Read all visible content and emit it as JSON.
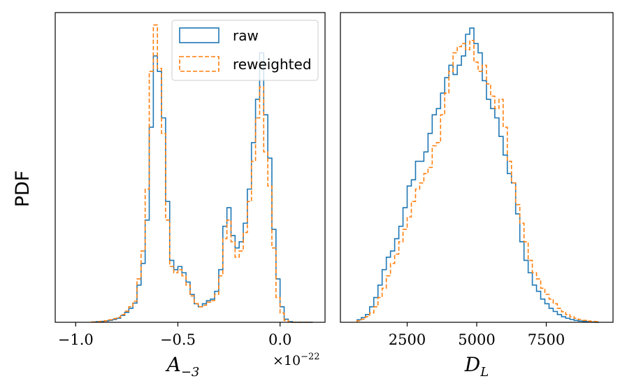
{
  "y_label": "PDF",
  "chart_data": [
    {
      "type": "histogram",
      "panel": "left",
      "xlabel_base": "A",
      "xlabel_sub": "−3",
      "offset_text": "×10",
      "offset_exp": "−22",
      "xlim": [
        -1.1,
        0.22
      ],
      "xticks": [
        -1.0,
        -0.5,
        0.0
      ],
      "xtick_labels": [
        "−1.0",
        "−0.5",
        "0.0"
      ],
      "ylim": [
        0,
        1.0
      ],
      "yticks_shown": false,
      "bin_edges": [
        -0.92,
        -0.9,
        -0.88,
        -0.86,
        -0.84,
        -0.82,
        -0.8,
        -0.78,
        -0.76,
        -0.74,
        -0.72,
        -0.7,
        -0.68,
        -0.66,
        -0.64,
        -0.62,
        -0.6,
        -0.58,
        -0.56,
        -0.54,
        -0.52,
        -0.5,
        -0.48,
        -0.46,
        -0.44,
        -0.42,
        -0.4,
        -0.38,
        -0.36,
        -0.34,
        -0.32,
        -0.3,
        -0.28,
        -0.26,
        -0.24,
        -0.22,
        -0.2,
        -0.18,
        -0.16,
        -0.14,
        -0.12,
        -0.1,
        -0.08,
        -0.06,
        -0.04,
        -0.02,
        0.0,
        0.02,
        0.04,
        0.06,
        0.08,
        0.1,
        0.12,
        0.14,
        0.16
      ],
      "series": [
        {
          "name": "raw",
          "color": "#1f77b4",
          "linestyle": "solid",
          "values": [
            0.001,
            0.002,
            0.003,
            0.004,
            0.006,
            0.009,
            0.013,
            0.022,
            0.032,
            0.045,
            0.062,
            0.12,
            0.19,
            0.33,
            0.63,
            0.86,
            0.81,
            0.66,
            0.39,
            0.2,
            0.17,
            0.18,
            0.16,
            0.13,
            0.09,
            0.06,
            0.05,
            0.06,
            0.07,
            0.075,
            0.1,
            0.17,
            0.31,
            0.37,
            0.28,
            0.24,
            0.26,
            0.32,
            0.43,
            0.58,
            0.72,
            0.87,
            0.67,
            0.53,
            0.3,
            0.14,
            0.05,
            0.01,
            0.002,
            0,
            0,
            0,
            0,
            0
          ]
        },
        {
          "name": "reweighted",
          "color": "#ff7f0e",
          "linestyle": "dashed",
          "values": [
            0.001,
            0.002,
            0.003,
            0.005,
            0.008,
            0.012,
            0.016,
            0.025,
            0.036,
            0.05,
            0.068,
            0.14,
            0.23,
            0.43,
            0.81,
            0.96,
            0.82,
            0.61,
            0.33,
            0.18,
            0.16,
            0.17,
            0.15,
            0.12,
            0.085,
            0.06,
            0.05,
            0.055,
            0.065,
            0.07,
            0.09,
            0.15,
            0.27,
            0.33,
            0.26,
            0.21,
            0.23,
            0.29,
            0.39,
            0.52,
            0.66,
            0.76,
            0.55,
            0.44,
            0.24,
            0.08,
            0.03,
            0.006,
            0.001,
            0,
            0,
            0,
            0,
            0
          ]
        }
      ],
      "legend": {
        "location": "upper-right",
        "entries": [
          "raw",
          "reweighted"
        ]
      }
    },
    {
      "type": "histogram",
      "panel": "right",
      "xlabel_base": "D",
      "xlabel_sub": "L",
      "xlim": [
        100,
        9900
      ],
      "xticks": [
        2500,
        5000,
        7500
      ],
      "xtick_labels": [
        "2500",
        "5000",
        "7500"
      ],
      "ylim": [
        0,
        1.0
      ],
      "yticks_shown": false,
      "bin_edges": [
        700,
        850,
        1000,
        1150,
        1300,
        1450,
        1600,
        1750,
        1900,
        2050,
        2200,
        2350,
        2500,
        2650,
        2800,
        2950,
        3100,
        3250,
        3400,
        3550,
        3700,
        3850,
        4000,
        4150,
        4300,
        4450,
        4600,
        4750,
        4900,
        5050,
        5200,
        5350,
        5500,
        5650,
        5800,
        5950,
        6100,
        6250,
        6400,
        6550,
        6700,
        6850,
        7000,
        7150,
        7300,
        7450,
        7600,
        7750,
        7900,
        8050,
        8200,
        8350,
        8500,
        8650,
        8800,
        8950,
        9100,
        9250,
        9400
      ],
      "series": [
        {
          "name": "raw",
          "color": "#1f77b4",
          "linestyle": "solid",
          "values": [
            0.008,
            0.015,
            0.025,
            0.05,
            0.08,
            0.12,
            0.17,
            0.21,
            0.23,
            0.27,
            0.31,
            0.37,
            0.44,
            0.46,
            0.52,
            0.52,
            0.55,
            0.61,
            0.67,
            0.69,
            0.74,
            0.79,
            0.83,
            0.8,
            0.83,
            0.86,
            0.93,
            0.95,
            0.9,
            0.87,
            0.78,
            0.72,
            0.69,
            0.66,
            0.6,
            0.54,
            0.48,
            0.45,
            0.35,
            0.26,
            0.2,
            0.16,
            0.12,
            0.1,
            0.075,
            0.06,
            0.045,
            0.035,
            0.025,
            0.018,
            0.013,
            0.009,
            0.006,
            0.004,
            0.003,
            0.002,
            0.001,
            0
          ]
        },
        {
          "name": "reweighted",
          "color": "#ff7f0e",
          "linestyle": "dashed",
          "values": [
            0.005,
            0.01,
            0.018,
            0.03,
            0.05,
            0.08,
            0.11,
            0.15,
            0.19,
            0.22,
            0.26,
            0.3,
            0.34,
            0.39,
            0.43,
            0.45,
            0.48,
            0.5,
            0.57,
            0.58,
            0.67,
            0.74,
            0.81,
            0.87,
            0.89,
            0.9,
            0.88,
            0.91,
            0.84,
            0.81,
            0.83,
            0.77,
            0.73,
            0.69,
            0.72,
            0.63,
            0.52,
            0.45,
            0.38,
            0.32,
            0.26,
            0.2,
            0.16,
            0.14,
            0.11,
            0.09,
            0.075,
            0.06,
            0.045,
            0.034,
            0.025,
            0.018,
            0.013,
            0.009,
            0.006,
            0.004,
            0.003,
            0.002
          ]
        }
      ]
    }
  ]
}
